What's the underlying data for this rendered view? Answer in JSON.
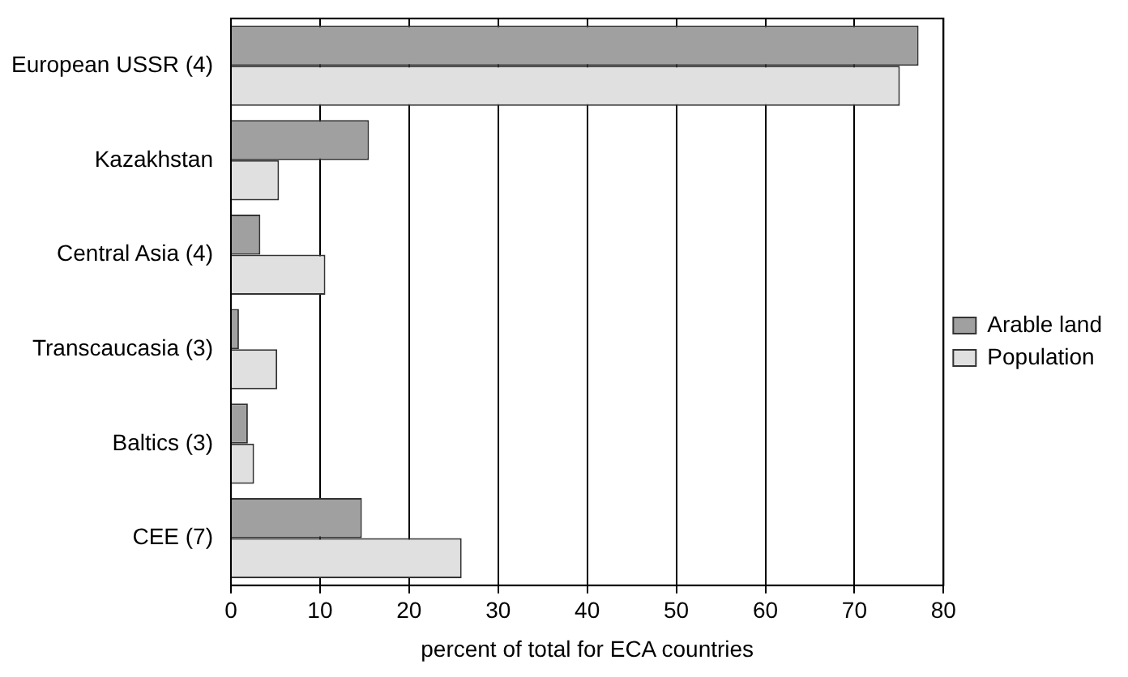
{
  "chart_data": {
    "type": "bar",
    "orientation": "horizontal",
    "xlabel": "percent of total for ECA countries",
    "categories": [
      "European USSR (4)",
      "Kazakhstan",
      "Central Asia (4)",
      "Transcaucasia (3)",
      "Baltics (3)",
      "CEE (7)"
    ],
    "series": [
      {
        "name": "Arable land",
        "color": "#a0a0a0",
        "values": [
          77.2,
          15.5,
          3.3,
          0.9,
          1.9,
          14.7
        ]
      },
      {
        "name": "Population",
        "color": "#e0e0e0",
        "values": [
          75.1,
          5.4,
          10.6,
          5.2,
          2.6,
          25.9
        ]
      }
    ],
    "xlim": [
      0,
      80
    ],
    "xticks": [
      0,
      10,
      20,
      30,
      40,
      50,
      60,
      70,
      80
    ],
    "grid": "x",
    "legend": "right"
  }
}
